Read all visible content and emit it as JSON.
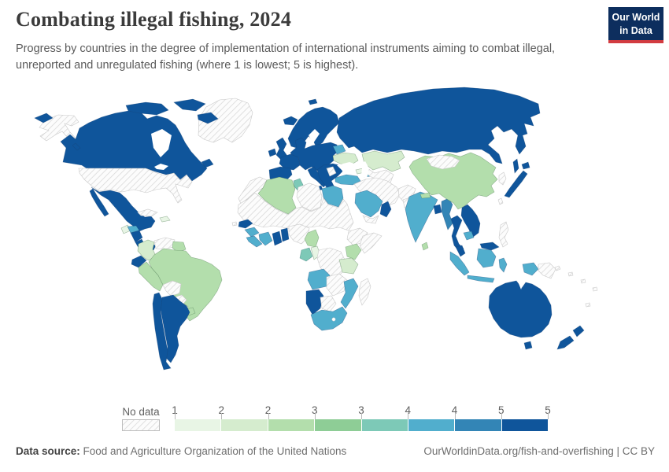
{
  "header": {
    "title": "Combating illegal fishing, 2024",
    "subtitle": "Progress by countries in the degree of implementation of international instruments aiming to combat illegal, unreported and unregulated fishing (where 1 is lowest; 5 is highest).",
    "logo": {
      "line1": "Our World",
      "line2": "in Data",
      "bg_color": "#0d2e5e",
      "accent_color": "#d23b40"
    }
  },
  "legend": {
    "no_data_label": "No data",
    "tick_labels": [
      "1",
      "2",
      "2",
      "3",
      "3",
      "4",
      "4",
      "5",
      "5"
    ],
    "bin_colors": [
      "#e8f5e5",
      "#d5ecce",
      "#b3deac",
      "#8ecd96",
      "#7dc9b7",
      "#51aecd",
      "#3385b6",
      "#0f559b"
    ],
    "bin_ranges": [
      "1–1.5",
      "1.5–2",
      "2–2.5",
      "2.5–3",
      "3–3.5",
      "3.5–4",
      "4–4.5",
      "4.5–5"
    ]
  },
  "map": {
    "countries": [
      {
        "id": "greenland",
        "name": "Greenland",
        "bin": 0
      },
      {
        "id": "alaska",
        "name": "United States",
        "bin": 0
      },
      {
        "id": "canada",
        "name": "Canada",
        "bin": 8
      },
      {
        "id": "usa",
        "name": "United States",
        "bin": 0
      },
      {
        "id": "mexico",
        "name": "Mexico",
        "bin": 8
      },
      {
        "id": "guatemala",
        "name": "Guatemala",
        "bin": 1
      },
      {
        "id": "honduras",
        "name": "Honduras",
        "bin": 6
      },
      {
        "id": "nicaragua",
        "name": "Nicaragua",
        "bin": 8
      },
      {
        "id": "costa-rica",
        "name": "Costa Rica",
        "bin": 8
      },
      {
        "id": "panama",
        "name": "Panama",
        "bin": 8
      },
      {
        "id": "cuba",
        "name": "Cuba",
        "bin": 0
      },
      {
        "id": "hispaniola",
        "name": "Dominican Republic",
        "bin": 1
      },
      {
        "id": "colombia",
        "name": "Colombia",
        "bin": 2
      },
      {
        "id": "venezuela",
        "name": "Venezuela",
        "bin": 0
      },
      {
        "id": "guyana",
        "name": "Guyana",
        "bin": 3
      },
      {
        "id": "ecuador",
        "name": "Ecuador",
        "bin": 8
      },
      {
        "id": "peru",
        "name": "Peru",
        "bin": 3
      },
      {
        "id": "brazil",
        "name": "Brazil",
        "bin": 3
      },
      {
        "id": "bolivia",
        "name": "Bolivia",
        "bin": 0
      },
      {
        "id": "paraguay",
        "name": "Paraguay",
        "bin": 0
      },
      {
        "id": "uruguay",
        "name": "Uruguay",
        "bin": 3
      },
      {
        "id": "chile",
        "name": "Chile",
        "bin": 8
      },
      {
        "id": "argentina",
        "name": "Argentina",
        "bin": 8
      },
      {
        "id": "iceland",
        "name": "Iceland",
        "bin": 8
      },
      {
        "id": "ireland",
        "name": "Ireland",
        "bin": 8
      },
      {
        "id": "uk",
        "name": "United Kingdom",
        "bin": 8
      },
      {
        "id": "iberia",
        "name": "Spain and Portugal",
        "bin": 8
      },
      {
        "id": "france",
        "name": "France",
        "bin": 8
      },
      {
        "id": "europe-core",
        "name": "Central Europe",
        "bin": 8
      },
      {
        "id": "scandinavia",
        "name": "Norway, Sweden and Finland",
        "bin": 8
      },
      {
        "id": "svalbard",
        "name": "Svalbard",
        "bin": 8
      },
      {
        "id": "italy",
        "name": "Italy",
        "bin": 8
      },
      {
        "id": "balkans",
        "name": "Southeast Europe",
        "bin": 8
      },
      {
        "id": "western-balkans",
        "name": "Western Balkans",
        "bin": 0
      },
      {
        "id": "belarus",
        "name": "Belarus",
        "bin": 6
      },
      {
        "id": "ukraine",
        "name": "Ukraine",
        "bin": 2
      },
      {
        "id": "georgia",
        "name": "Georgia",
        "bin": 1
      },
      {
        "id": "azerbaijan",
        "name": "Azerbaijan",
        "bin": 6
      },
      {
        "id": "turkey",
        "name": "Turkey",
        "bin": 6
      },
      {
        "id": "russia",
        "name": "Russia",
        "bin": 8
      },
      {
        "id": "kazakhstan",
        "name": "Kazakhstan",
        "bin": 2
      },
      {
        "id": "central-asia",
        "name": "Central Asia",
        "bin": 0
      },
      {
        "id": "iran-region",
        "name": "Iran, Iraq and Syria",
        "bin": 0
      },
      {
        "id": "saudi-arabia",
        "name": "Saudi Arabia",
        "bin": 6
      },
      {
        "id": "yemen",
        "name": "Yemen",
        "bin": 0
      },
      {
        "id": "oman",
        "name": "Oman",
        "bin": 8
      },
      {
        "id": "afghanistan",
        "name": "Afghanistan",
        "bin": 0
      },
      {
        "id": "pakistan",
        "name": "Pakistan",
        "bin": 0
      },
      {
        "id": "india",
        "name": "India",
        "bin": 6
      },
      {
        "id": "nepal",
        "name": "Nepal",
        "bin": 3
      },
      {
        "id": "sri-lanka",
        "name": "Sri Lanka",
        "bin": 3
      },
      {
        "id": "bangladesh",
        "name": "Bangladesh",
        "bin": 8
      },
      {
        "id": "myanmar",
        "name": "Myanmar",
        "bin": 7
      },
      {
        "id": "china",
        "name": "China",
        "bin": 3
      },
      {
        "id": "mongolia",
        "name": "Mongolia",
        "bin": 0
      },
      {
        "id": "korea",
        "name": "North and South Korea",
        "bin": 0
      },
      {
        "id": "japan",
        "name": "Japan",
        "bin": 8
      },
      {
        "id": "taiwan",
        "name": "Taiwan",
        "bin": 0
      },
      {
        "id": "thailand",
        "name": "Thailand",
        "bin": 8
      },
      {
        "id": "vietnam-laos",
        "name": "Vietnam and Laos",
        "bin": 8
      },
      {
        "id": "cambodia",
        "name": "Cambodia",
        "bin": 6
      },
      {
        "id": "malaysia",
        "name": "Malaysia",
        "bin": 8
      },
      {
        "id": "indonesia",
        "name": "Indonesia",
        "bin": 6
      },
      {
        "id": "philippines",
        "name": "Philippines",
        "bin": 0
      },
      {
        "id": "papua-new-guinea",
        "name": "Papua New Guinea",
        "bin": 0
      },
      {
        "id": "australia",
        "name": "Australia",
        "bin": 8
      },
      {
        "id": "new-zealand",
        "name": "New Zealand",
        "bin": 8
      },
      {
        "id": "morocco",
        "name": "Morocco",
        "bin": 0
      },
      {
        "id": "algeria",
        "name": "Algeria",
        "bin": 3
      },
      {
        "id": "tunisia",
        "name": "Tunisia",
        "bin": 5
      },
      {
        "id": "libya",
        "name": "Libya",
        "bin": 0
      },
      {
        "id": "egypt",
        "name": "Egypt",
        "bin": 6
      },
      {
        "id": "sahel",
        "name": "Sahel and Sudan",
        "bin": 0
      },
      {
        "id": "senegal",
        "name": "Senegal",
        "bin": 8
      },
      {
        "id": "guinea",
        "name": "Guinea",
        "bin": 6
      },
      {
        "id": "sierra-leone-liberia",
        "name": "Sierra Leone and Liberia",
        "bin": 6
      },
      {
        "id": "cote-divoire",
        "name": "Côte d'Ivoire",
        "bin": 6
      },
      {
        "id": "ghana",
        "name": "Ghana",
        "bin": 8
      },
      {
        "id": "togo-benin",
        "name": "Togo and Benin",
        "bin": 8
      },
      {
        "id": "nigeria",
        "name": "Nigeria",
        "bin": 0
      },
      {
        "id": "cameroon",
        "name": "Cameroon",
        "bin": 3
      },
      {
        "id": "gabon",
        "name": "Gabon",
        "bin": 5
      },
      {
        "id": "congo",
        "name": "Congo",
        "bin": 1
      },
      {
        "id": "drc",
        "name": "Democratic Republic of Congo",
        "bin": 0
      },
      {
        "id": "ethiopia",
        "name": "Ethiopia",
        "bin": 0
      },
      {
        "id": "somalia",
        "name": "Somalia",
        "bin": 0
      },
      {
        "id": "kenya",
        "name": "Kenya",
        "bin": 3
      },
      {
        "id": "tanzania",
        "name": "Tanzania",
        "bin": 2
      },
      {
        "id": "angola",
        "name": "Angola",
        "bin": 6
      },
      {
        "id": "zambia-zimbabwe",
        "name": "Zambia and Zimbabwe",
        "bin": 0
      },
      {
        "id": "mozambique",
        "name": "Mozambique",
        "bin": 6
      },
      {
        "id": "namibia",
        "name": "Namibia",
        "bin": 8
      },
      {
        "id": "botswana",
        "name": "Botswana",
        "bin": 0
      },
      {
        "id": "south-africa",
        "name": "South Africa",
        "bin": 6
      },
      {
        "id": "madagascar",
        "name": "Madagascar",
        "bin": 0
      },
      {
        "id": "cape-verde",
        "name": "Cape Verde",
        "bin": 0
      },
      {
        "id": "pacific-islands",
        "name": "Pacific Islands",
        "bin": 0
      },
      {
        "id": "chukotka",
        "name": "Russia",
        "bin": 8
      }
    ]
  },
  "footer": {
    "source_label": "Data source:",
    "source_text": " Food and Agriculture Organization of the United Nations",
    "right_text": "OurWorldinData.org/fish-and-overfishing | CC BY"
  }
}
